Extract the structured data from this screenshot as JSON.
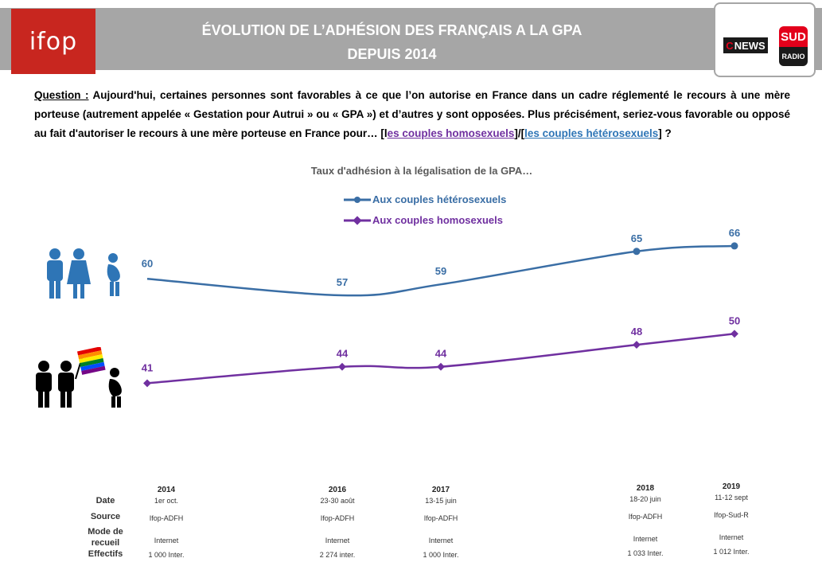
{
  "header": {
    "logo_text": "ifop",
    "title_line1": "ÉVOLUTION DE L’ADHÉSION DES FRANÇAIS A LA GPA",
    "title_line2": "DEPUIS 2014",
    "partner_cnews": "NEWS",
    "partner_cnews_c": "C",
    "partner_sud_top": "SUD",
    "partner_sud_bottom": "RADIO"
  },
  "question": {
    "label": "Question :",
    "text": " Aujourd'hui, certaines personnes sont favorables à ce que l’on autorise en France dans un cadre réglementé le recours à une mère porteuse (autrement appelée « Gestation pour Autrui » ou « GPA ») et d’autres y sont opposées. Plus précisément, seriez-vous  favorable ou opposé au fait d'autoriser le recours à une mère porteuse en France pour… [l",
    "homo": "es couples homosexuels",
    "mid": "]/[",
    "hetero": "les couples hétérosexuels",
    "end": "] ?"
  },
  "colors": {
    "hetero": "#3a6ea5",
    "homo": "#7030a0",
    "banner": "#a6a6a6",
    "ifop_red": "#c8261f"
  },
  "chart_data": {
    "type": "line",
    "title": "Taux d'adhésion à la légalisation de la GPA…",
    "x": [
      "2014",
      "2016",
      "2017",
      "2018",
      "2019"
    ],
    "series": [
      {
        "name": "Aux couples hétérosexuels",
        "values": [
          60,
          57,
          59,
          65,
          66
        ],
        "labels": [
          "60",
          "57",
          "59",
          "65",
          "66"
        ]
      },
      {
        "name": "Aux couples homosexuels",
        "values": [
          41,
          44,
          44,
          48,
          50
        ],
        "labels": [
          "41",
          "44",
          "44",
          "48",
          "50"
        ]
      }
    ],
    "legend": "top-center",
    "grid": false
  },
  "meta": {
    "labels": {
      "date": "Date",
      "source": "Source",
      "mode1": "Mode de",
      "mode2": "recueil",
      "effectifs": "Effectifs"
    },
    "columns": [
      {
        "year": "2014",
        "date": "1er oct.",
        "source": "Ifop-ADFH",
        "mode": "Internet",
        "effectifs": "1 000 Inter."
      },
      {
        "year": "2016",
        "date": "23-30 août",
        "source": "Ifop-ADFH",
        "mode": "Internet",
        "effectifs": "2 274 inter."
      },
      {
        "year": "2017",
        "date": "13-15 juin",
        "source": "Ifop-ADFH",
        "mode": "Internet",
        "effectifs": "1 000 Inter."
      },
      {
        "year": "2018",
        "date": "18-20 juin",
        "source": "Ifop-ADFH",
        "mode": "Internet",
        "effectifs": "1 033 Inter."
      },
      {
        "year": "2019",
        "date": "11-12 sept",
        "source": "Ifop-Sud-R",
        "mode": "Internet",
        "effectifs": "1 012 Inter."
      }
    ]
  },
  "icons": {
    "hetero_family": "couple-pregnant-woman-icon",
    "homo_family": "male-couple-rainbow-flag-pregnant-woman-icon"
  }
}
